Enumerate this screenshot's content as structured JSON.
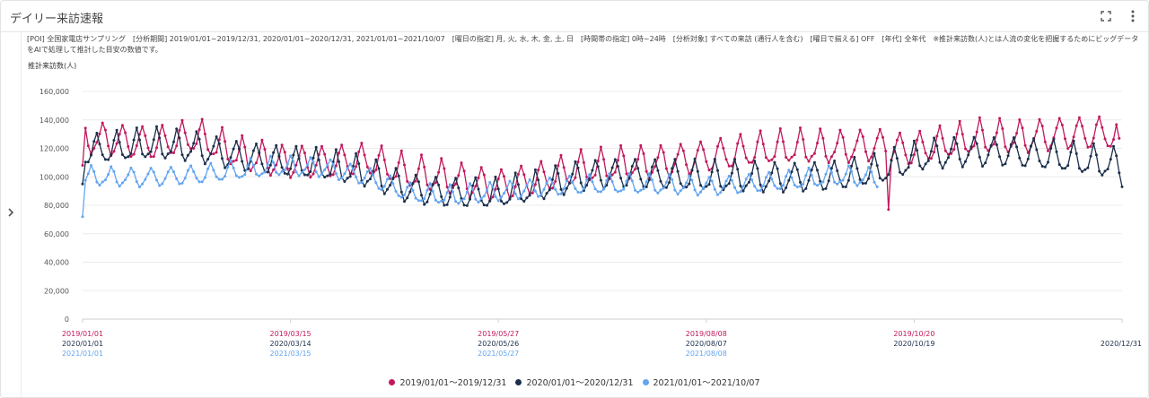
{
  "header": {
    "title": "デイリー来訪速報",
    "expand_icon": "fullscreen-icon",
    "menu_icon": "more-vert-icon"
  },
  "sidebar": {
    "toggle_icon": "chevron-right-icon"
  },
  "note": "[POI] 全国家電店サンプリング　[分析期間] 2019/01/01~2019/12/31, 2020/01/01~2020/12/31, 2021/01/01~2021/10/07　[曜日の指定] 月, 火, 水, 木, 金, 土, 日　[時間帯の指定] 0時~24時　[分析対象] すべての来訪 (通行人を含む)　[曜日で揃える] OFF　[年代] 全年代　※推計来訪数(人)とは人流の変化を把握するためにビッグデータをAIで処理して推計した目安の数値です。",
  "colors": {
    "series2019": "#c2185b",
    "series2020": "#1b2f4b",
    "series2021": "#64a5f0"
  },
  "chart_data": {
    "type": "line",
    "ylabel": "推計来訪数(人)",
    "xlabel": "",
    "ylim": [
      0,
      160000
    ],
    "yticks": [
      0,
      20000,
      40000,
      60000,
      80000,
      100000,
      120000,
      140000,
      160000
    ],
    "ytick_labels": [
      "0",
      "20,000",
      "40,000",
      "60,000",
      "80,000",
      "100,000",
      "120,000",
      "140,000",
      "160,000"
    ],
    "xlim": [
      0,
      365
    ],
    "grid": true,
    "xticks": [
      {
        "x": 0,
        "labels": [
          "2019/01/01",
          "2020/01/01",
          "2021/01/01"
        ]
      },
      {
        "x": 73,
        "labels": [
          "2019/03/15",
          "2020/03/14",
          "2021/03/15"
        ]
      },
      {
        "x": 146,
        "labels": [
          "2019/05/27",
          "2020/05/26",
          "2021/05/27"
        ]
      },
      {
        "x": 219,
        "labels": [
          "2019/08/08",
          "2020/08/07",
          "2021/08/08"
        ]
      },
      {
        "x": 292,
        "labels": [
          "2019/10/20",
          "2020/10/19",
          ""
        ]
      },
      {
        "x": 365,
        "labels": [
          "",
          "2020/12/31",
          ""
        ]
      }
    ],
    "series": [
      {
        "name": "2019/01/01～2019/12/31",
        "color": "#c2185b",
        "length": 365,
        "start": 108000,
        "segments": [
          [
            0,
            127000
          ],
          [
            25,
            123000
          ],
          [
            40,
            128000
          ],
          [
            55,
            115000
          ],
          [
            70,
            110000
          ],
          [
            85,
            110000
          ],
          [
            100,
            111000
          ],
          [
            115,
            102000
          ],
          [
            130,
            98000
          ],
          [
            145,
            93000
          ],
          [
            160,
            98000
          ],
          [
            175,
            105000
          ],
          [
            190,
            108000
          ],
          [
            205,
            110000
          ],
          [
            220,
            114000
          ],
          [
            235,
            118000
          ],
          [
            250,
            120000
          ],
          [
            265,
            120000
          ],
          [
            280,
            122000
          ],
          [
            290,
            118000
          ],
          [
            300,
            122000
          ],
          [
            315,
            127000
          ],
          [
            330,
            127000
          ],
          [
            345,
            130000
          ],
          [
            364,
            130000
          ]
        ],
        "amp": 13000,
        "dip": {
          "x": 283,
          "value": 77000
        },
        "end": 127000
      },
      {
        "name": "2020/01/01～2020/12/31",
        "color": "#1b2f4b",
        "length": 366,
        "start": 95000,
        "segments": [
          [
            0,
            118000
          ],
          [
            25,
            122000
          ],
          [
            40,
            120000
          ],
          [
            55,
            114000
          ],
          [
            70,
            110000
          ],
          [
            85,
            107000
          ],
          [
            100,
            102000
          ],
          [
            115,
            91000
          ],
          [
            130,
            88000
          ],
          [
            145,
            87000
          ],
          [
            160,
            92000
          ],
          [
            175,
            100000
          ],
          [
            190,
            102000
          ],
          [
            205,
            100000
          ],
          [
            220,
            99000
          ],
          [
            235,
            99000
          ],
          [
            250,
            99000
          ],
          [
            265,
            100000
          ],
          [
            280,
            104000
          ],
          [
            295,
            114000
          ],
          [
            310,
            117000
          ],
          [
            325,
            117000
          ],
          [
            340,
            114000
          ],
          [
            355,
            110000
          ],
          [
            365,
            108000
          ]
        ],
        "amp": 12000,
        "end": 93000
      },
      {
        "name": "2021/01/01～2021/10/07",
        "color": "#64a5f0",
        "length": 280,
        "start": 72000,
        "segments": [
          [
            0,
            100000
          ],
          [
            20,
            99000
          ],
          [
            40,
            101000
          ],
          [
            55,
            104000
          ],
          [
            70,
            107000
          ],
          [
            85,
            106000
          ],
          [
            100,
            100000
          ],
          [
            115,
            88000
          ],
          [
            130,
            86000
          ],
          [
            145,
            89000
          ],
          [
            160,
            92000
          ],
          [
            175,
            94000
          ],
          [
            190,
            94000
          ],
          [
            205,
            94000
          ],
          [
            220,
            93000
          ],
          [
            235,
            95000
          ],
          [
            250,
            97000
          ],
          [
            265,
            100000
          ],
          [
            279,
            99000
          ]
        ],
        "amp": 7500
      }
    ]
  }
}
